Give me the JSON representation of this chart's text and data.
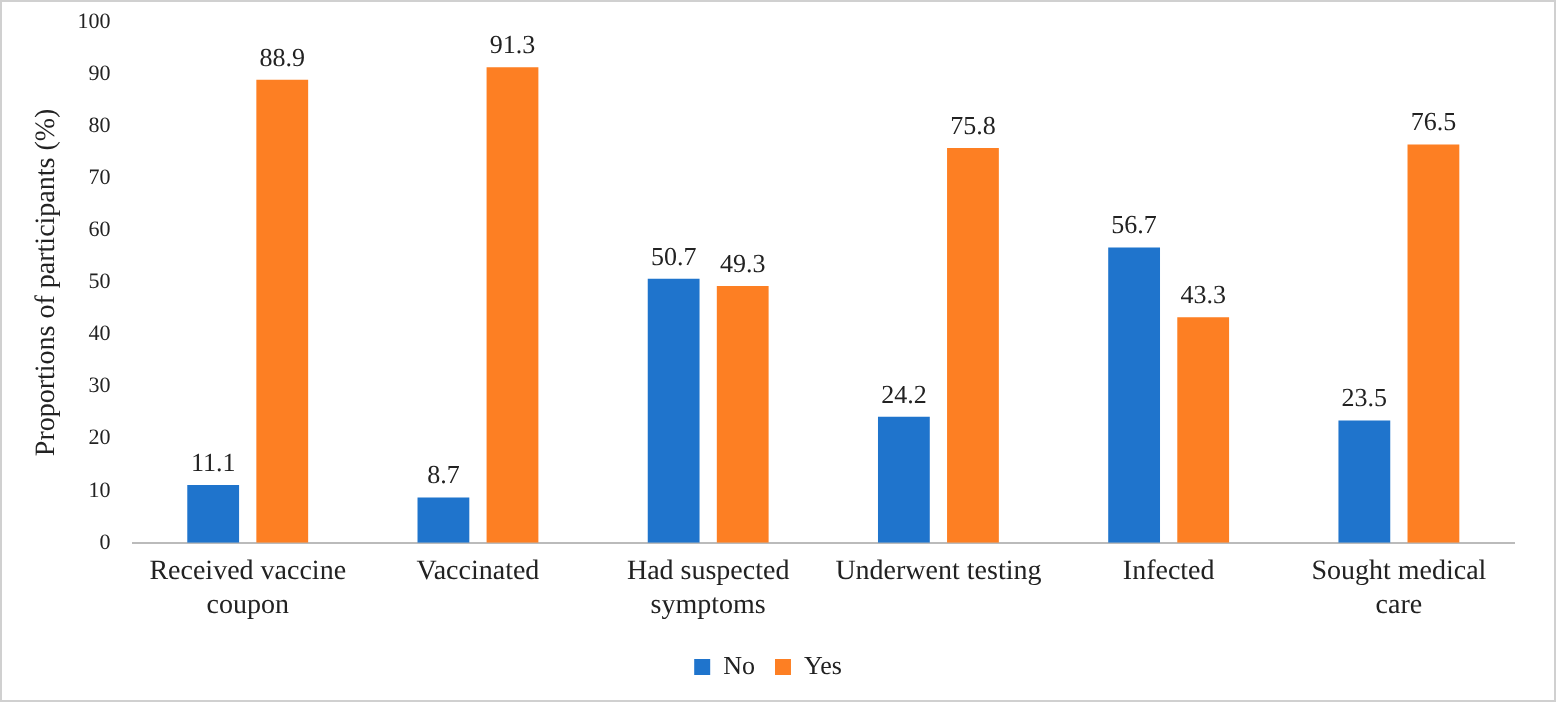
{
  "chart_data": {
    "type": "bar",
    "ylabel": "Proportions of participants (%)",
    "categories": [
      "Received vaccine coupon",
      "Vaccinated",
      "Had suspected symptoms",
      "Underwent testing",
      "Infected",
      "Sought medical care"
    ],
    "series": [
      {
        "name": "No",
        "color": "#1f74cc",
        "values": [
          11.1,
          8.7,
          50.7,
          24.2,
          56.7,
          23.5
        ]
      },
      {
        "name": "Yes",
        "color": "#fd7f23",
        "values": [
          88.9,
          91.3,
          49.3,
          75.8,
          43.3,
          76.5
        ]
      }
    ],
    "ylim": [
      0,
      100
    ],
    "yticks": [
      0,
      10,
      20,
      30,
      40,
      50,
      60,
      70,
      80,
      90,
      100
    ],
    "grid": false,
    "legend": "bottom",
    "data_labels": true
  }
}
